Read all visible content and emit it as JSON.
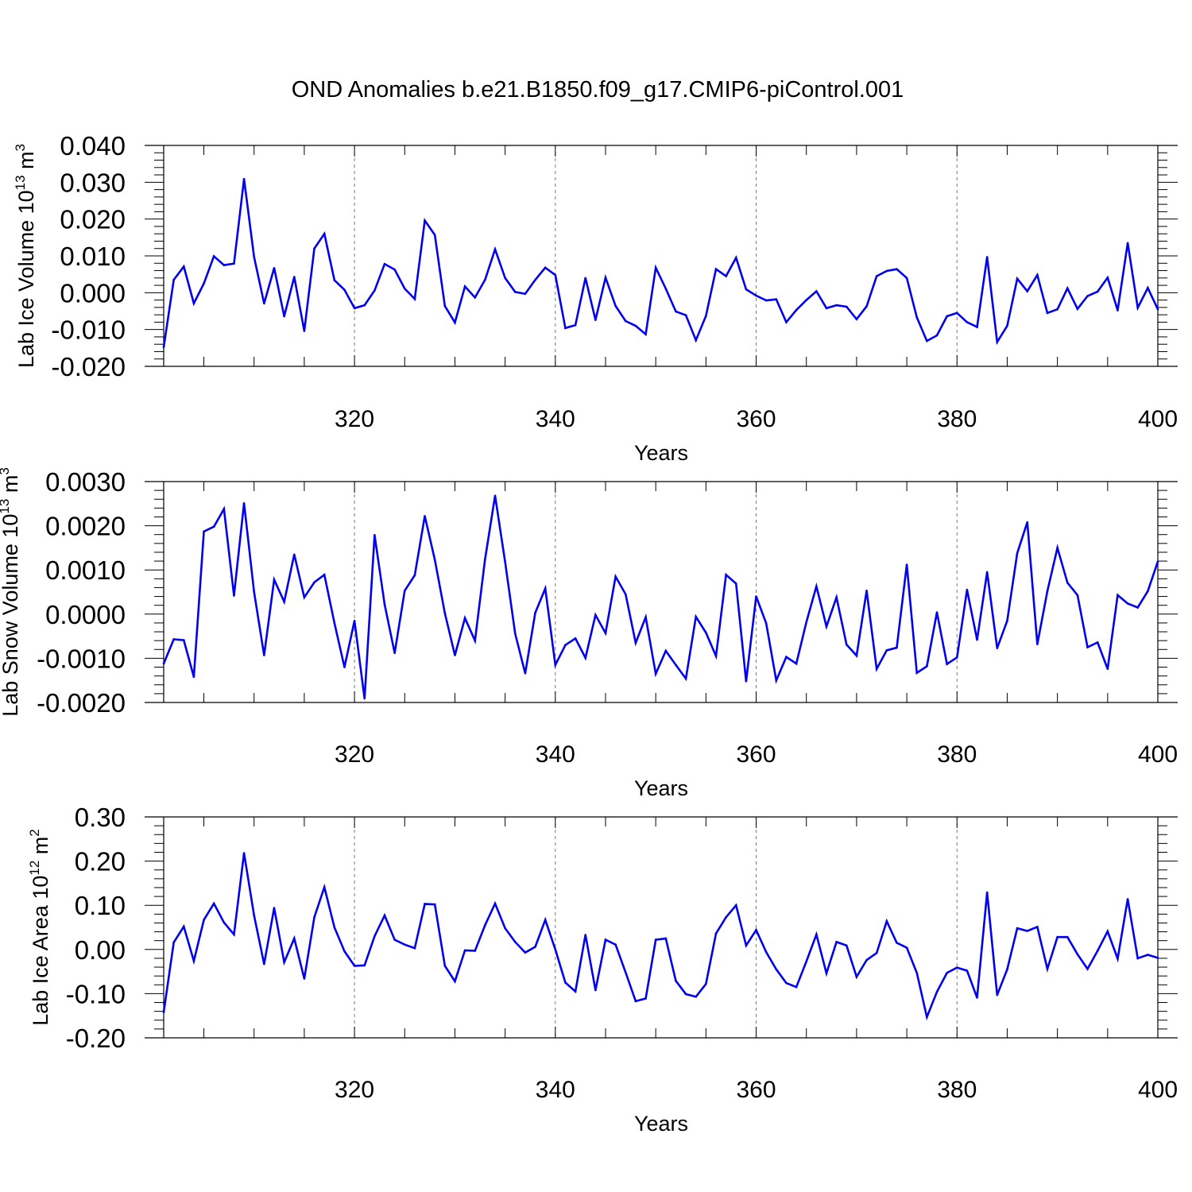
{
  "title": "OND Anomalies b.e21.B1850.f09_g17.CMIP6-piControl.001",
  "colors": {
    "line": "#0000ee",
    "axis": "#000000",
    "grid": "#777777"
  },
  "chart_data": [
    {
      "type": "line",
      "ylabel": {
        "main": "Lab Ice Volume 10",
        "exp": "13",
        "unit": "m",
        "unit_exp": "3"
      },
      "xlabel": "Years",
      "xlim": [
        301,
        400
      ],
      "ylim": [
        -0.02,
        0.04
      ],
      "yticks": [
        {
          "v": 0.04,
          "label": "0.040"
        },
        {
          "v": 0.03,
          "label": "0.030"
        },
        {
          "v": 0.02,
          "label": "0.020"
        },
        {
          "v": 0.01,
          "label": "0.010"
        },
        {
          "v": 0.0,
          "label": "0.000"
        },
        {
          "v": -0.01,
          "label": "-0.010"
        },
        {
          "v": -0.02,
          "label": "-0.020"
        }
      ],
      "xticks": [
        {
          "v": 320,
          "label": "320"
        },
        {
          "v": 340,
          "label": "340"
        },
        {
          "v": 360,
          "label": "360"
        },
        {
          "v": 380,
          "label": "380"
        },
        {
          "v": 400,
          "label": "400"
        }
      ],
      "grid_x": [
        320,
        340,
        360,
        380
      ],
      "x_start": 301,
      "values": [
        -0.0148,
        0.0035,
        0.0071,
        -0.0029,
        0.0025,
        0.0099,
        0.0075,
        0.0079,
        0.0309,
        0.0097,
        -0.0029,
        0.0067,
        -0.0064,
        0.0043,
        -0.0104,
        0.012,
        0.016,
        0.0034,
        0.0008,
        -0.0042,
        -0.0034,
        0.0006,
        0.0078,
        0.0063,
        0.0011,
        -0.0017,
        0.0196,
        0.0157,
        -0.0036,
        -0.0081,
        0.0017,
        -0.0013,
        0.0035,
        0.0118,
        0.004,
        0.0002,
        -0.0003,
        0.0035,
        0.0068,
        0.0048,
        -0.0096,
        -0.0088,
        0.004,
        -0.0074,
        0.0041,
        -0.0036,
        -0.0077,
        -0.009,
        -0.0113,
        0.0068,
        0.0011,
        -0.0051,
        -0.0061,
        -0.0129,
        -0.0063,
        0.0064,
        0.0045,
        0.0095,
        0.0009,
        -0.0008,
        -0.0021,
        -0.0018,
        -0.008,
        -0.0047,
        -0.002,
        0.0004,
        -0.0042,
        -0.0034,
        -0.0038,
        -0.0072,
        -0.0037,
        0.0045,
        0.0059,
        0.0064,
        0.004,
        -0.0067,
        -0.0131,
        -0.0116,
        -0.0064,
        -0.0055,
        -0.008,
        -0.0093,
        0.0097,
        -0.0134,
        -0.009,
        0.0038,
        0.0004,
        0.0048,
        -0.0055,
        -0.0045,
        0.0012,
        -0.0044,
        -0.0009,
        0.0003,
        0.0041,
        -0.0048,
        0.0135,
        -0.0041,
        0.0013,
        -0.0045
      ]
    },
    {
      "type": "line",
      "ylabel": {
        "main": "Lab Snow Volume 10",
        "exp": "13",
        "unit": "m",
        "unit_exp": "3"
      },
      "xlabel": "Years",
      "xlim": [
        301,
        400
      ],
      "ylim": [
        -0.002,
        0.003
      ],
      "yticks": [
        {
          "v": 0.003,
          "label": "0.0030"
        },
        {
          "v": 0.002,
          "label": "0.0020"
        },
        {
          "v": 0.001,
          "label": "0.0010"
        },
        {
          "v": 0.0,
          "label": "0.0000"
        },
        {
          "v": -0.001,
          "label": "-0.0010"
        },
        {
          "v": -0.002,
          "label": "-0.0020"
        }
      ],
      "xticks": [
        {
          "v": 320,
          "label": "320"
        },
        {
          "v": 340,
          "label": "340"
        },
        {
          "v": 360,
          "label": "360"
        },
        {
          "v": 380,
          "label": "380"
        },
        {
          "v": 400,
          "label": "400"
        }
      ],
      "grid_x": [
        320,
        340,
        360,
        380
      ],
      "x_start": 301,
      "values": [
        -0.00112,
        -0.00057,
        -0.00059,
        -0.00142,
        0.00187,
        0.00198,
        0.00238,
        0.00042,
        0.00251,
        0.0005,
        -0.00093,
        0.00078,
        0.00028,
        0.00135,
        0.00038,
        0.00072,
        0.00089,
        -0.0002,
        -0.0012,
        -0.00015,
        -0.00191,
        0.00179,
        0.00022,
        -0.00088,
        0.00053,
        0.00088,
        0.00222,
        0.00123,
        2e-05,
        -0.00093,
        -9e-05,
        -0.0006,
        0.00124,
        0.00268,
        0.00118,
        -0.00044,
        -0.00134,
        3e-05,
        0.00058,
        -0.00115,
        -0.0007,
        -0.00055,
        -0.00099,
        -2e-05,
        -0.00043,
        0.00085,
        0.00045,
        -0.00065,
        -7e-05,
        -0.00135,
        -0.00083,
        -0.00115,
        -0.00146,
        -6e-05,
        -0.00042,
        -0.00095,
        0.00089,
        0.00069,
        -0.00152,
        0.0004,
        -0.00021,
        -0.0015,
        -0.00097,
        -0.00112,
        -0.00018,
        0.00063,
        -0.00028,
        0.00038,
        -0.00069,
        -0.00094,
        0.00053,
        -0.00124,
        -0.00082,
        -0.00076,
        0.00112,
        -0.00133,
        -0.00118,
        4e-05,
        -0.00113,
        -0.00098,
        0.00055,
        -0.00058,
        0.00095,
        -0.00077,
        -0.00015,
        0.00138,
        0.00208,
        -0.00068,
        0.00052,
        0.0015,
        0.00071,
        0.00043,
        -0.00075,
        -0.00064,
        -0.00124,
        0.00043,
        0.00024,
        0.00015,
        0.00052,
        0.00119
      ]
    },
    {
      "type": "line",
      "ylabel": {
        "main": "Lab Ice Area 10",
        "exp": "12",
        "unit": "m",
        "unit_exp": "2"
      },
      "xlabel": "Years",
      "xlim": [
        301,
        400
      ],
      "ylim": [
        -0.2,
        0.3
      ],
      "yticks": [
        {
          "v": 0.3,
          "label": "0.30"
        },
        {
          "v": 0.2,
          "label": "0.20"
        },
        {
          "v": 0.1,
          "label": "0.10"
        },
        {
          "v": 0.0,
          "label": "0.00"
        },
        {
          "v": -0.1,
          "label": "-0.10"
        },
        {
          "v": -0.2,
          "label": "-0.20"
        }
      ],
      "xticks": [
        {
          "v": 320,
          "label": "320"
        },
        {
          "v": 340,
          "label": "340"
        },
        {
          "v": 360,
          "label": "360"
        },
        {
          "v": 380,
          "label": "380"
        },
        {
          "v": 400,
          "label": "400"
        }
      ],
      "grid_x": [
        320,
        340,
        360,
        380
      ],
      "x_start": 301,
      "values": [
        -0.142,
        0.016,
        0.052,
        -0.026,
        0.067,
        0.104,
        0.061,
        0.034,
        0.218,
        0.077,
        -0.033,
        0.094,
        -0.029,
        0.025,
        -0.066,
        0.073,
        0.141,
        0.05,
        -0.004,
        -0.037,
        -0.036,
        0.03,
        0.077,
        0.022,
        0.011,
        0.003,
        0.103,
        0.102,
        -0.037,
        -0.072,
        -0.002,
        -0.003,
        0.055,
        0.104,
        0.048,
        0.017,
        -0.007,
        0.006,
        0.067,
        0.0,
        -0.075,
        -0.095,
        0.033,
        -0.092,
        0.022,
        0.011,
        -0.052,
        -0.117,
        -0.111,
        0.022,
        0.025,
        -0.071,
        -0.101,
        -0.107,
        -0.078,
        0.036,
        0.073,
        0.1,
        0.009,
        0.044,
        -0.006,
        -0.045,
        -0.076,
        -0.085,
        -0.027,
        0.034,
        -0.054,
        0.017,
        0.009,
        -0.062,
        -0.024,
        -0.008,
        0.064,
        0.015,
        0.004,
        -0.053,
        -0.153,
        -0.096,
        -0.053,
        -0.041,
        -0.048,
        -0.109,
        0.129,
        -0.103,
        -0.045,
        0.048,
        0.042,
        0.051,
        -0.044,
        0.028,
        0.028,
        -0.011,
        -0.044,
        -0.003,
        0.041,
        -0.021,
        0.114,
        -0.02,
        -0.012,
        -0.019
      ]
    }
  ]
}
